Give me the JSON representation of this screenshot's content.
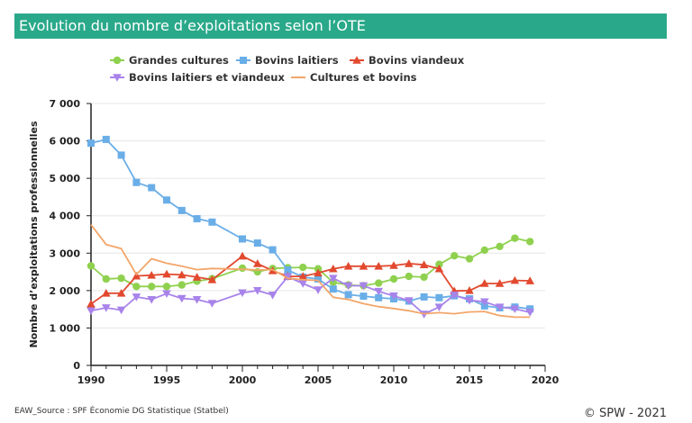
{
  "header": {
    "title": "Evolution du nombre d’exploitations selon l’OTE"
  },
  "footer": {
    "source": "EAW_Source : SPF Économie DG Statistique (Statbel)",
    "copyright": "© SPW - 2021"
  },
  "colors": {
    "header_bg": "#2aa98a",
    "grandes_cultures": "#8fd14f",
    "bovins_laitiers": "#6aaee8",
    "bovins_viandeux": "#e2492f",
    "bovins_laitiers_viandeux": "#a883ea",
    "cultures_bovins": "#f2a66a"
  },
  "chart_data": {
    "type": "line",
    "title": "",
    "xlabel": "",
    "ylabel": "Nombre d’exploitations professionnelles",
    "xlim": [
      1990,
      2020
    ],
    "ylim": [
      0,
      7000
    ],
    "x_ticks": [
      "1990",
      "1995",
      "2000",
      "2005",
      "2010",
      "2015",
      "2020"
    ],
    "y_ticks": [
      "0",
      "1 000",
      "2 000",
      "3 000",
      "4 000",
      "5 000",
      "6 000",
      "7 000"
    ],
    "grid": "horizontal",
    "legend_position": "top",
    "x": [
      1990,
      1991,
      1992,
      1993,
      1994,
      1995,
      1996,
      1997,
      1998,
      2000,
      2001,
      2002,
      2003,
      2004,
      2005,
      2006,
      2007,
      2008,
      2009,
      2010,
      2011,
      2012,
      2013,
      2014,
      2015,
      2016,
      2017,
      2018,
      2019
    ],
    "series": [
      {
        "name": "Grandes cultures",
        "marker": "circle",
        "values": [
          2660,
          2310,
          2330,
          2110,
          2110,
          2110,
          2150,
          2250,
          2320,
          2600,
          2500,
          2590,
          2610,
          2620,
          2580,
          2220,
          2150,
          2130,
          2200,
          2310,
          2380,
          2360,
          2700,
          2930,
          2850,
          3080,
          3180,
          3400,
          3310
        ]
      },
      {
        "name": "Bovins laitiers",
        "marker": "square",
        "values": [
          5940,
          6040,
          5620,
          4890,
          4750,
          4420,
          4140,
          3920,
          3830,
          3380,
          3270,
          3090,
          2550,
          2360,
          2310,
          2040,
          1890,
          1850,
          1810,
          1780,
          1720,
          1830,
          1810,
          1860,
          1780,
          1590,
          1540,
          1560,
          1510
        ]
      },
      {
        "name": "Bovins viandeux",
        "marker": "triangle",
        "values": [
          1640,
          1930,
          1930,
          2390,
          2410,
          2440,
          2420,
          2360,
          2290,
          2920,
          2720,
          2530,
          2380,
          2380,
          2470,
          2580,
          2650,
          2650,
          2650,
          2670,
          2720,
          2690,
          2580,
          1990,
          2000,
          2190,
          2190,
          2270,
          2260
        ]
      },
      {
        "name": "Bovins laitiers et viandeux",
        "marker": "triangle-down",
        "values": [
          1460,
          1540,
          1480,
          1830,
          1760,
          1920,
          1790,
          1760,
          1660,
          1940,
          2000,
          1880,
          2370,
          2190,
          2020,
          2330,
          2130,
          2130,
          1980,
          1860,
          1730,
          1370,
          1560,
          1880,
          1740,
          1700,
          1560,
          1510,
          1420
        ]
      },
      {
        "name": "Cultures et bovins",
        "marker": "none",
        "values": [
          3760,
          3230,
          3120,
          2430,
          2850,
          2730,
          2650,
          2560,
          2590,
          2570,
          2550,
          2560,
          2330,
          2290,
          2270,
          1820,
          1760,
          1650,
          1570,
          1520,
          1460,
          1380,
          1410,
          1380,
          1430,
          1440,
          1330,
          1290,
          1290
        ]
      }
    ]
  }
}
